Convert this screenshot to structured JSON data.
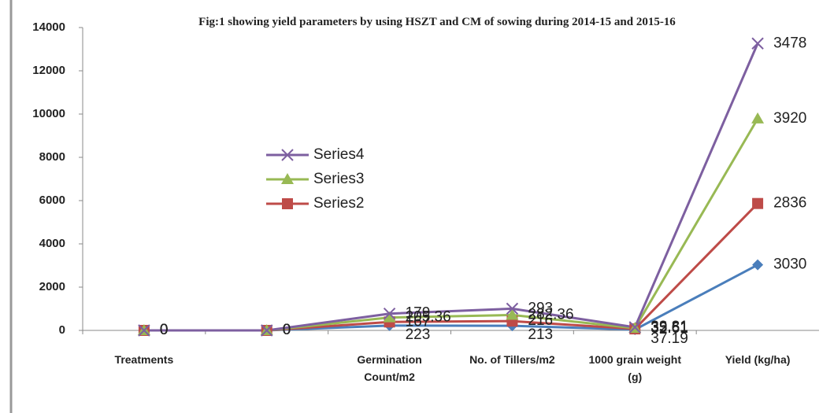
{
  "chart_data": {
    "type": "line",
    "stacked": true,
    "title": "Fig:1 showing yield parameters  by using HSZT and CM of sowing during 2014-15 and 2015-16",
    "categories": [
      "Treatments",
      null,
      "Germination Count/m2",
      "No. of Tillers/m2",
      "1000 grain weight (g)",
      "Yield (kg/ha)"
    ],
    "series": [
      {
        "color": "#4a7ebb",
        "marker": "diamond",
        "values": [
          0,
          0,
          223,
          213,
          37.19,
          3030
        ]
      },
      {
        "name": "Series2",
        "color": "#be4b48",
        "marker": "square",
        "values": [
          0,
          0,
          167,
          216,
          32.61,
          2836
        ]
      },
      {
        "name": "Series3",
        "color": "#98b954",
        "marker": "triangle",
        "values": [
          0,
          0,
          205.36,
          282.36,
          35.61,
          3920
        ]
      },
      {
        "name": "Series4",
        "color": "#7d5fa0",
        "marker": "x",
        "values": [
          0,
          0,
          179,
          293,
          39.81,
          3478
        ]
      }
    ],
    "ylim": [
      0,
      14000
    ],
    "yticks": [
      0,
      2000,
      4000,
      6000,
      8000,
      10000,
      12000,
      14000
    ],
    "data_labels": true,
    "legend": "left"
  }
}
